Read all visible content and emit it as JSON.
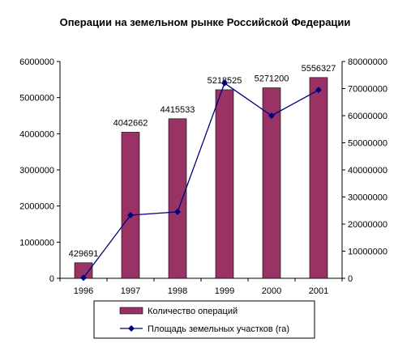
{
  "chart_data": {
    "type": "bar",
    "title": "Операции на земельном рынке Российской Федерации",
    "categories": [
      "1996",
      "1997",
      "1998",
      "1999",
      "2000",
      "2001"
    ],
    "series": [
      {
        "name": "Количество операций",
        "type": "bar",
        "axis": "left",
        "color": "#993366",
        "values": [
          429691,
          4042662,
          4415533,
          5218525,
          5271200,
          5556327
        ],
        "data_labels": [
          "429691",
          "4042662",
          "4415533",
          "5218525",
          "5271200",
          "5556327"
        ]
      },
      {
        "name": "Площадь земельных участков (га)",
        "type": "line",
        "axis": "right",
        "color": "#000080",
        "values": [
          200000,
          23300000,
          24500000,
          72000000,
          60000000,
          69500000
        ]
      }
    ],
    "ylim_left": [
      0,
      6000000
    ],
    "yticks_left": [
      "0",
      "1000000",
      "2000000",
      "3000000",
      "4000000",
      "5000000",
      "6000000"
    ],
    "ylim_right": [
      0,
      80000000
    ],
    "yticks_right": [
      "0",
      "10000000",
      "20000000",
      "30000000",
      "40000000",
      "50000000",
      "60000000",
      "70000000",
      "80000000"
    ],
    "legend_position": "bottom",
    "grid": false
  }
}
